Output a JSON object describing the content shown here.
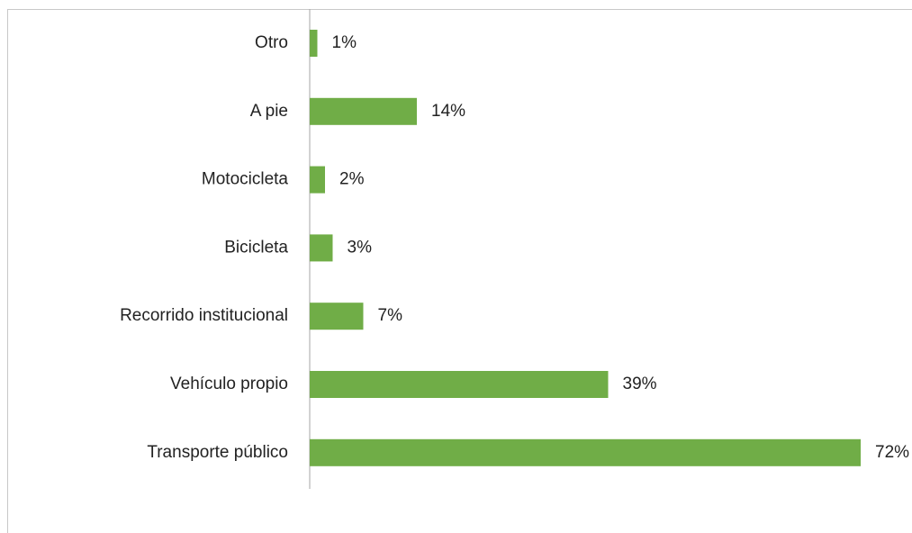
{
  "chart_data": {
    "type": "barh",
    "categories": [
      "Otro",
      "A pie",
      "Motocicleta",
      "Bicicleta",
      "Recorrido institucional",
      "Vehículo propio",
      "Transporte público"
    ],
    "values": [
      1,
      14,
      2,
      3,
      7,
      39,
      72
    ],
    "value_labels": [
      "1%",
      "14%",
      "2%",
      "3%",
      "7%",
      "39%",
      "72%"
    ],
    "color": "#70ad47"
  }
}
